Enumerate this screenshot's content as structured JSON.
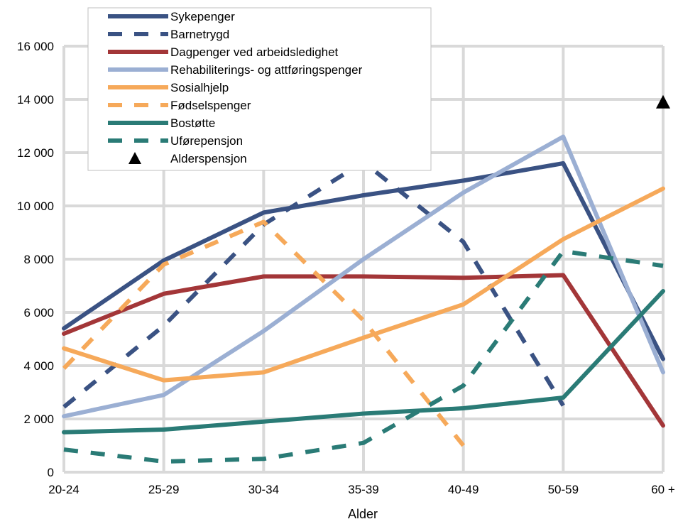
{
  "chart_data": {
    "type": "line",
    "xlabel": "Alder",
    "ylabel": "",
    "categories": [
      "20-24",
      "25-29",
      "30-34",
      "35-39",
      "40-49",
      "50-59",
      "60 +"
    ],
    "ylim": [
      0,
      16000
    ],
    "yticks": [
      0,
      2000,
      4000,
      6000,
      8000,
      10000,
      12000,
      14000,
      16000
    ],
    "ytick_labels": [
      "0",
      "2 000",
      "4 000",
      "6 000",
      "8 000",
      "10 000",
      "12 000",
      "14 000",
      "16 000"
    ],
    "grid": true,
    "legend_position": "top-left",
    "series": [
      {
        "name": "Sykepenger",
        "style": "solid",
        "color": "#3a5283",
        "values": [
          5400,
          7950,
          9750,
          10400,
          10950,
          11600,
          4250
        ]
      },
      {
        "name": "Barnetrygd",
        "style": "dashed",
        "color": "#3a5283",
        "values": [
          2450,
          5500,
          9300,
          11650,
          8650,
          2500,
          null
        ]
      },
      {
        "name": "Dagpenger ved arbeidsledighet",
        "style": "solid",
        "color": "#a33638",
        "values": [
          5200,
          6700,
          7350,
          7350,
          7300,
          7400,
          1750
        ]
      },
      {
        "name": "Rehabiliterings- og attføringspenger",
        "style": "solid",
        "color": "#9bafd3",
        "values": [
          2100,
          2900,
          5300,
          8000,
          10500,
          12600,
          3750
        ]
      },
      {
        "name": "Sosialhjelp",
        "style": "solid",
        "color": "#f6a95a",
        "values": [
          4650,
          3450,
          3750,
          5050,
          6300,
          8750,
          10650
        ]
      },
      {
        "name": "Fødselspenger",
        "style": "dashed",
        "color": "#f6a95a",
        "values": [
          3900,
          7800,
          9400,
          5700,
          1000,
          null,
          null
        ]
      },
      {
        "name": "Bostøtte",
        "style": "solid",
        "color": "#2a7b76",
        "values": [
          1500,
          1600,
          1900,
          2200,
          2400,
          2800,
          6800
        ]
      },
      {
        "name": "Uførepensjon",
        "style": "dashed",
        "color": "#2a7b76",
        "values": [
          850,
          400,
          500,
          1100,
          3250,
          8300,
          7750
        ]
      },
      {
        "name": "Alderspensjon",
        "style": "marker",
        "color": "#000000",
        "values": [
          null,
          null,
          null,
          null,
          null,
          null,
          13900
        ]
      }
    ]
  }
}
